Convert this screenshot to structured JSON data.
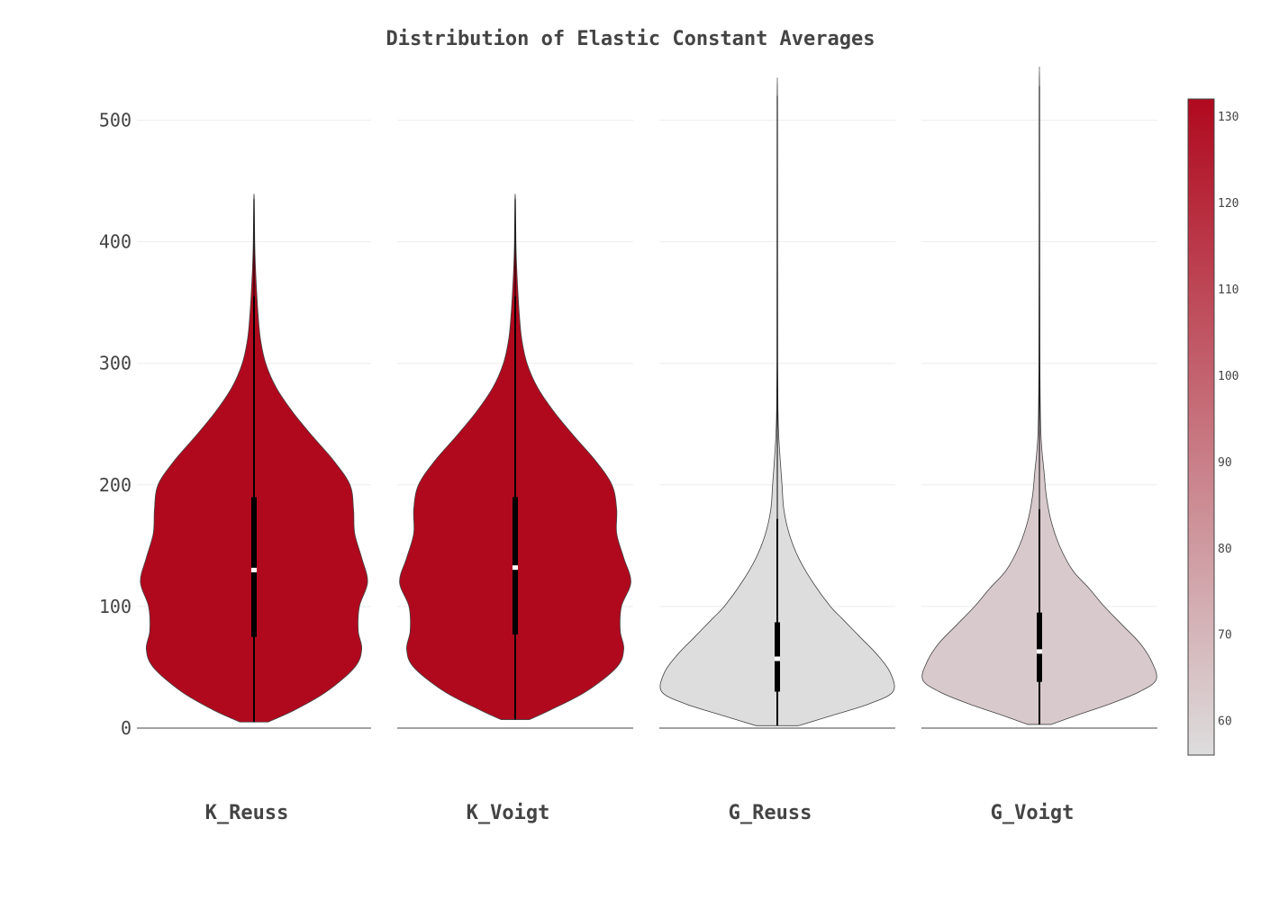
{
  "chart_data": {
    "type": "violin",
    "title": "Distribution of Elastic Constant Averages",
    "xlabel": "",
    "ylabel": "",
    "ylim": [
      0,
      530
    ],
    "yticks": [
      0,
      100,
      200,
      300,
      400,
      500
    ],
    "grid": true,
    "colorbar": {
      "range": [
        56,
        132
      ],
      "ticks": [
        60,
        70,
        80,
        90,
        100,
        110,
        120,
        130
      ],
      "low_color": "#dddddd",
      "high_color": "#b0091e"
    },
    "series": [
      {
        "name": "K_Reuss",
        "color_value": 130,
        "fill": "#b0091e",
        "min": 5,
        "max": 435,
        "q1": 75,
        "median": 130,
        "q3": 190,
        "whisker_low": 5,
        "whisker_high": 355,
        "profile": [
          [
            5,
            0.12
          ],
          [
            15,
            0.35
          ],
          [
            30,
            0.62
          ],
          [
            50,
            0.86
          ],
          [
            65,
            0.92
          ],
          [
            80,
            0.89
          ],
          [
            100,
            0.9
          ],
          [
            120,
            0.97
          ],
          [
            140,
            0.92
          ],
          [
            160,
            0.86
          ],
          [
            180,
            0.85
          ],
          [
            200,
            0.82
          ],
          [
            220,
            0.68
          ],
          [
            240,
            0.5
          ],
          [
            260,
            0.33
          ],
          [
            280,
            0.19
          ],
          [
            300,
            0.1
          ],
          [
            320,
            0.055
          ],
          [
            340,
            0.035
          ],
          [
            360,
            0.022
          ],
          [
            380,
            0.012
          ],
          [
            400,
            0.006
          ],
          [
            435,
            0.002
          ]
        ]
      },
      {
        "name": "K_Voigt",
        "color_value": 131,
        "fill": "#b0091e",
        "min": 7,
        "max": 435,
        "q1": 77,
        "median": 132,
        "q3": 190,
        "whisker_low": 7,
        "whisker_high": 355,
        "profile": [
          [
            7,
            0.12
          ],
          [
            15,
            0.3
          ],
          [
            30,
            0.6
          ],
          [
            50,
            0.86
          ],
          [
            65,
            0.92
          ],
          [
            80,
            0.89
          ],
          [
            100,
            0.9
          ],
          [
            120,
            0.98
          ],
          [
            140,
            0.92
          ],
          [
            160,
            0.86
          ],
          [
            180,
            0.86
          ],
          [
            200,
            0.82
          ],
          [
            220,
            0.68
          ],
          [
            240,
            0.5
          ],
          [
            260,
            0.33
          ],
          [
            280,
            0.19
          ],
          [
            300,
            0.1
          ],
          [
            320,
            0.055
          ],
          [
            340,
            0.035
          ],
          [
            360,
            0.022
          ],
          [
            380,
            0.012
          ],
          [
            400,
            0.006
          ],
          [
            435,
            0.002
          ]
        ]
      },
      {
        "name": "G_Reuss",
        "color_value": 56,
        "fill": "#dddddd",
        "min": 2,
        "max": 520,
        "q1": 30,
        "median": 57,
        "q3": 87,
        "whisker_low": 2,
        "whisker_high": 172,
        "profile": [
          [
            2,
            0.18
          ],
          [
            10,
            0.45
          ],
          [
            20,
            0.78
          ],
          [
            30,
            0.98
          ],
          [
            45,
            0.96
          ],
          [
            60,
            0.85
          ],
          [
            75,
            0.7
          ],
          [
            90,
            0.55
          ],
          [
            100,
            0.45
          ],
          [
            120,
            0.3
          ],
          [
            140,
            0.18
          ],
          [
            160,
            0.1
          ],
          [
            180,
            0.055
          ],
          [
            200,
            0.04
          ],
          [
            220,
            0.025
          ],
          [
            240,
            0.012
          ],
          [
            260,
            0.006
          ],
          [
            300,
            0.003
          ],
          [
            400,
            0.002
          ],
          [
            520,
            0.001
          ]
        ]
      },
      {
        "name": "G_Voigt",
        "color_value": 63,
        "fill": "#d8c9cc",
        "min": 3,
        "max": 528,
        "q1": 38,
        "median": 63,
        "q3": 95,
        "whisker_low": 3,
        "whisker_high": 180,
        "profile": [
          [
            3,
            0.1
          ],
          [
            10,
            0.3
          ],
          [
            20,
            0.6
          ],
          [
            30,
            0.85
          ],
          [
            40,
            0.99
          ],
          [
            55,
            0.95
          ],
          [
            70,
            0.85
          ],
          [
            85,
            0.7
          ],
          [
            100,
            0.55
          ],
          [
            115,
            0.42
          ],
          [
            130,
            0.28
          ],
          [
            150,
            0.17
          ],
          [
            170,
            0.1
          ],
          [
            190,
            0.06
          ],
          [
            210,
            0.04
          ],
          [
            230,
            0.02
          ],
          [
            250,
            0.01
          ],
          [
            300,
            0.004
          ],
          [
            400,
            0.002
          ],
          [
            528,
            0.001
          ]
        ]
      }
    ]
  }
}
